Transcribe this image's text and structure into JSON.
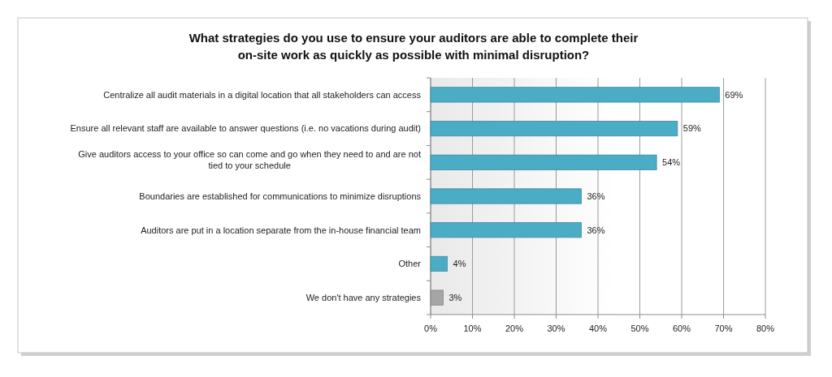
{
  "chart_data": {
    "type": "bar",
    "orientation": "horizontal",
    "title": "What strategies do you use to ensure your auditors are able to complete their on-site work as quickly as possible with minimal disruption?",
    "categories": [
      "Centralize all audit materials in a digital location that all stakeholders can access",
      "Ensure all relevant staff are available to answer questions (i.e. no vacations during audit)",
      "Give auditors access to your office so can come and go when they need to and are not tied to your schedule",
      "Boundaries are established for communications to minimize disruptions",
      "Auditors are put in a location separate from the in-house financial team",
      "Other",
      "We don't have any strategies"
    ],
    "values": [
      69,
      59,
      54,
      36,
      36,
      4,
      3
    ],
    "colors": [
      "#4bacc6",
      "#4bacc6",
      "#4bacc6",
      "#4bacc6",
      "#4bacc6",
      "#4bacc6",
      "#a5a5a5"
    ],
    "value_labels": [
      "69%",
      "59%",
      "54%",
      "36%",
      "36%",
      "4%",
      "3%"
    ],
    "xlim": [
      0,
      80
    ],
    "xticks": [
      {
        "value": 0,
        "label": "0%"
      },
      {
        "value": 10,
        "label": "10%"
      },
      {
        "value": 20,
        "label": "20%"
      },
      {
        "value": 30,
        "label": "30%"
      },
      {
        "value": 40,
        "label": "40%"
      },
      {
        "value": 50,
        "label": "50%"
      },
      {
        "value": 60,
        "label": "60%"
      },
      {
        "value": 70,
        "label": "70%"
      },
      {
        "value": 80,
        "label": "80%"
      }
    ],
    "grid": "x"
  }
}
